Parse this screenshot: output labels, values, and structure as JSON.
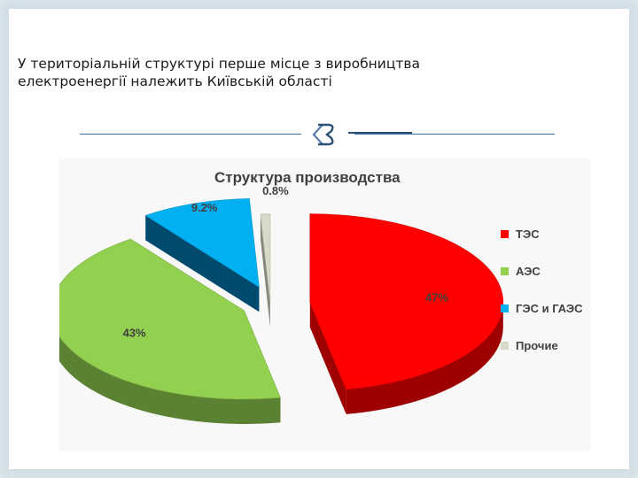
{
  "slide": {
    "heading_line1": "У територіальній структурі перше місце з виробництва",
    "heading_line2": "електроенергії належить Київській області"
  },
  "icons": {
    "ornament": "quote-bracket-icon"
  },
  "chart_data": {
    "type": "pie",
    "style": "3d-exploded",
    "title": "Структура производства",
    "categories": [
      "ТЭС",
      "АЭС",
      "ГЭС и ГАЭС",
      "Прочие"
    ],
    "values": [
      47,
      43,
      9.2,
      0.8
    ],
    "data_labels": [
      "47%",
      "43%",
      "9.2%",
      "0.8%"
    ],
    "colors": [
      "#ff0000",
      "#92d050",
      "#00b0f0",
      "#d9d9c8"
    ],
    "legend_position": "right"
  }
}
